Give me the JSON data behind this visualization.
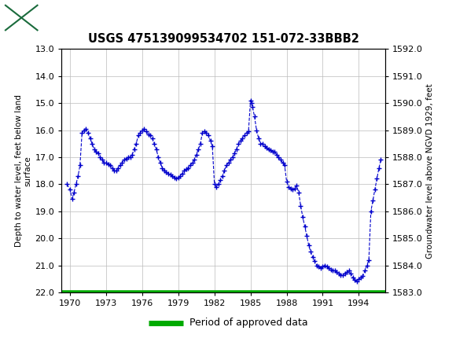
{
  "title": "USGS 475139099534702 151-072-33BBB2",
  "ylabel_left": "Depth to water level, feet below land\nsurface",
  "ylabel_right": "Groundwater level above NGVD 1929, feet",
  "ylim_left": [
    22.0,
    13.0
  ],
  "ylim_right": [
    1583.0,
    1592.0
  ],
  "yticks_left": [
    13.0,
    14.0,
    15.0,
    16.0,
    17.0,
    18.0,
    19.0,
    20.0,
    21.0,
    22.0
  ],
  "yticks_right": [
    1583.0,
    1584.0,
    1585.0,
    1586.0,
    1587.0,
    1588.0,
    1589.0,
    1590.0,
    1591.0,
    1592.0
  ],
  "xlim": [
    1969.3,
    1996.2
  ],
  "xticks": [
    1970,
    1973,
    1976,
    1979,
    1982,
    1985,
    1988,
    1991,
    1994
  ],
  "line_color": "#0000CC",
  "green_line_color": "#00AA00",
  "background_color": "#ffffff",
  "header_color": "#1a6b3c",
  "grid_color": "#bbbbbb",
  "years": [
    1969.75,
    1970.0,
    1970.17,
    1970.33,
    1970.5,
    1970.67,
    1970.83,
    1971.0,
    1971.17,
    1971.33,
    1971.5,
    1971.67,
    1971.83,
    1972.0,
    1972.17,
    1972.33,
    1972.5,
    1972.67,
    1972.83,
    1973.0,
    1973.17,
    1973.33,
    1973.5,
    1973.67,
    1973.83,
    1974.0,
    1974.17,
    1974.33,
    1974.5,
    1974.67,
    1974.83,
    1975.0,
    1975.17,
    1975.33,
    1975.5,
    1975.67,
    1975.83,
    1976.0,
    1976.17,
    1976.33,
    1976.5,
    1976.67,
    1976.83,
    1977.0,
    1977.17,
    1977.33,
    1977.5,
    1977.67,
    1977.83,
    1978.0,
    1978.17,
    1978.33,
    1978.5,
    1978.67,
    1978.83,
    1979.0,
    1979.17,
    1979.33,
    1979.5,
    1979.67,
    1979.83,
    1980.0,
    1980.17,
    1980.33,
    1980.5,
    1980.67,
    1980.83,
    1981.0,
    1981.17,
    1981.33,
    1981.5,
    1981.67,
    1981.83,
    1982.0,
    1982.17,
    1982.33,
    1982.5,
    1982.67,
    1982.83,
    1983.0,
    1983.17,
    1983.33,
    1983.5,
    1983.67,
    1983.83,
    1984.0,
    1984.17,
    1984.33,
    1984.5,
    1984.67,
    1984.83,
    1985.0,
    1985.08,
    1985.17,
    1985.33,
    1985.5,
    1985.67,
    1985.83,
    1986.0,
    1986.17,
    1986.33,
    1986.5,
    1986.67,
    1986.83,
    1987.0,
    1987.17,
    1987.33,
    1987.5,
    1987.67,
    1987.83,
    1988.0,
    1988.17,
    1988.33,
    1988.5,
    1988.67,
    1988.83,
    1989.0,
    1989.17,
    1989.33,
    1989.5,
    1989.67,
    1989.83,
    1990.0,
    1990.17,
    1990.33,
    1990.5,
    1990.67,
    1990.83,
    1991.0,
    1991.17,
    1991.33,
    1991.5,
    1991.67,
    1991.83,
    1992.0,
    1992.17,
    1992.33,
    1992.5,
    1992.67,
    1992.83,
    1993.0,
    1993.17,
    1993.33,
    1993.5,
    1993.67,
    1993.83,
    1994.0,
    1994.17,
    1994.33,
    1994.5,
    1994.67,
    1994.83,
    1995.0,
    1995.17,
    1995.33,
    1995.5,
    1995.67,
    1995.83
  ],
  "depths": [
    18.0,
    18.2,
    18.55,
    18.3,
    18.0,
    17.7,
    17.3,
    16.1,
    16.0,
    15.95,
    16.1,
    16.3,
    16.5,
    16.7,
    16.8,
    16.85,
    17.0,
    17.1,
    17.2,
    17.2,
    17.25,
    17.3,
    17.4,
    17.5,
    17.5,
    17.4,
    17.3,
    17.2,
    17.1,
    17.05,
    17.0,
    17.0,
    16.9,
    16.7,
    16.5,
    16.2,
    16.1,
    16.0,
    15.95,
    16.05,
    16.15,
    16.2,
    16.3,
    16.5,
    16.7,
    17.0,
    17.2,
    17.4,
    17.5,
    17.55,
    17.6,
    17.65,
    17.7,
    17.75,
    17.8,
    17.75,
    17.7,
    17.6,
    17.5,
    17.45,
    17.4,
    17.3,
    17.2,
    17.1,
    16.9,
    16.7,
    16.5,
    16.1,
    16.05,
    16.1,
    16.2,
    16.4,
    16.6,
    18.0,
    18.1,
    18.0,
    17.85,
    17.7,
    17.5,
    17.3,
    17.2,
    17.1,
    17.0,
    16.85,
    16.7,
    16.5,
    16.4,
    16.3,
    16.2,
    16.1,
    16.05,
    14.9,
    15.0,
    15.15,
    15.5,
    16.0,
    16.3,
    16.5,
    16.5,
    16.6,
    16.65,
    16.7,
    16.75,
    16.8,
    16.8,
    16.9,
    17.0,
    17.1,
    17.2,
    17.3,
    17.9,
    18.1,
    18.15,
    18.2,
    18.15,
    18.05,
    18.3,
    18.8,
    19.2,
    19.55,
    19.9,
    20.25,
    20.5,
    20.7,
    20.85,
    21.0,
    21.05,
    21.1,
    21.05,
    21.0,
    21.05,
    21.1,
    21.15,
    21.2,
    21.2,
    21.25,
    21.3,
    21.35,
    21.35,
    21.3,
    21.25,
    21.2,
    21.3,
    21.45,
    21.55,
    21.6,
    21.5,
    21.45,
    21.4,
    21.2,
    21.0,
    20.8,
    19.0,
    18.6,
    18.2,
    17.8,
    17.4,
    17.1
  ]
}
